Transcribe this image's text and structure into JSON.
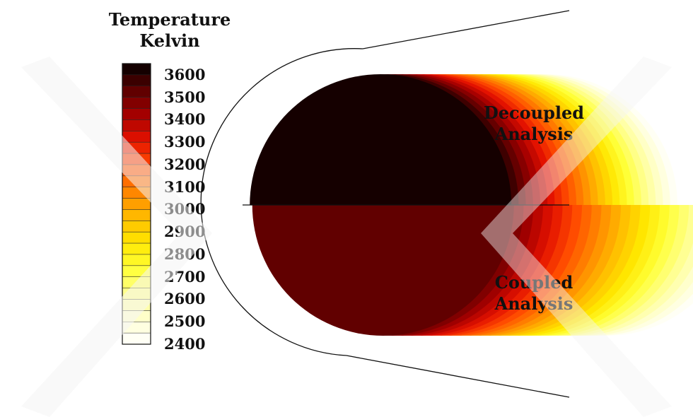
{
  "chart_data": {
    "type": "heatmap",
    "title": "Temperature",
    "units": "Kelvin",
    "colorbar": {
      "ticks": [
        3600,
        3500,
        3400,
        3300,
        3200,
        3100,
        3000,
        2900,
        2800,
        2700,
        2600,
        2500,
        2400
      ],
      "range": [
        2400,
        3650
      ],
      "colormap": [
        "#000000",
        "#5a0000",
        "#a40000",
        "#e41200",
        "#ff4a00",
        "#ff8400",
        "#ffba00",
        "#ffe600",
        "#ffff35",
        "#ffff8c",
        "#ffffd0",
        "#ffffff"
      ]
    },
    "regions": [
      {
        "label_line1": "Decoupled",
        "label_line2": "Analysis",
        "position": "upper",
        "stagnation_temperature": 3650,
        "min_temperature": 2400
      },
      {
        "label_line1": "Coupled",
        "label_line2": "Analysis",
        "position": "lower",
        "stagnation_temperature": 3550,
        "min_temperature": 2400
      }
    ]
  }
}
